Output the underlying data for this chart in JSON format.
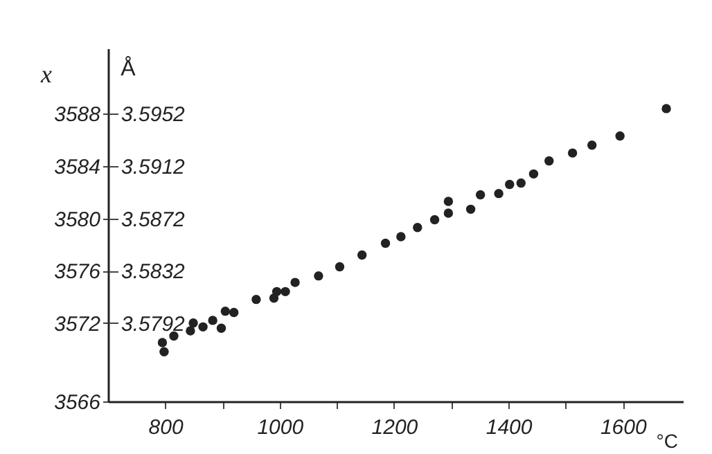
{
  "chart_data": {
    "type": "scatter",
    "xlabel": "°C",
    "ylabel": "x",
    "y2label": "Å",
    "x": [
      795,
      798,
      815,
      844,
      849,
      866,
      883,
      898,
      905,
      920,
      959,
      990,
      995,
      1010,
      1027,
      1068,
      1105,
      1144,
      1185,
      1212,
      1241,
      1271,
      1295,
      1295,
      1334,
      1351,
      1383,
      1402,
      1422,
      1444,
      1471,
      1512,
      1546,
      1595,
      1676
    ],
    "series": [
      {
        "color": "#222222",
        "values": [
          3570.5,
          3569.8,
          3571.0,
          3571.4,
          3572.0,
          3571.7,
          3572.2,
          3571.6,
          3572.9,
          3572.8,
          3573.8,
          3573.9,
          3574.4,
          3574.4,
          3575.1,
          3575.6,
          3576.3,
          3577.2,
          3578.1,
          3578.6,
          3579.3,
          3579.9,
          3580.4,
          3581.3,
          3580.7,
          3581.8,
          3581.9,
          3582.6,
          3582.7,
          3583.4,
          3584.4,
          3585.0,
          3585.6,
          3586.3,
          3588.4
        ]
      }
    ],
    "xlim": [
      700,
      1705
    ],
    "xticks": [
      {
        "value": 800,
        "label": "800"
      },
      {
        "value": 900,
        "label": null
      },
      1000,
      {
        "value": 1100,
        "label": null
      },
      1200,
      {
        "value": 1300,
        "label": null
      },
      1400,
      {
        "value": 1500,
        "label": null
      },
      1600
    ],
    "ylim": [
      3566,
      3593
    ],
    "yticks": [
      3566,
      3572,
      3576,
      3580,
      3584,
      3588
    ],
    "y2lim": [
      3.5732,
      3.6002
    ],
    "y2ticks": [
      3.5792,
      3.5832,
      3.5872,
      3.5912,
      3.5952
    ],
    "marker": "circle",
    "grid": false,
    "legend": false
  }
}
